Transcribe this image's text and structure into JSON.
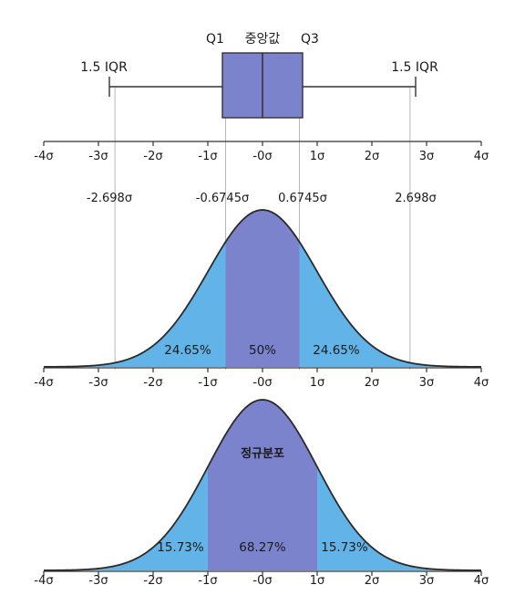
{
  "axis_ticks": [
    "-4σ",
    "-3σ",
    "-2σ",
    "-1σ",
    "-0σ",
    "1σ",
    "2σ",
    "3σ",
    "4σ"
  ],
  "boxplot": {
    "q1_label": "Q1",
    "median_label": "중앙값",
    "q3_label": "Q3",
    "left_whisker_label": "1.5 IQR",
    "right_whisker_label": "1.5 IQR",
    "q1": -0.6745,
    "q3": 0.6745,
    "whisker_low": -2.698,
    "whisker_high": 2.698
  },
  "boundary_labels": [
    "-2.698σ",
    "-0.6745σ",
    "0.6745σ",
    "2.698σ"
  ],
  "curve1": {
    "outer_left_pct": "24.65%",
    "center_pct": "50%",
    "outer_right_pct": "24.65%"
  },
  "curve2": {
    "title": "정규분포",
    "outer_left_pct": "15.73%",
    "center_pct": "68.27%",
    "outer_right_pct": "15.73%"
  },
  "colors": {
    "light_region": "#62b4e8",
    "dark_region": "#7a83cc",
    "box_fill": "#7a83cc",
    "line": "#333333",
    "guide": "#b0b0b0"
  }
}
